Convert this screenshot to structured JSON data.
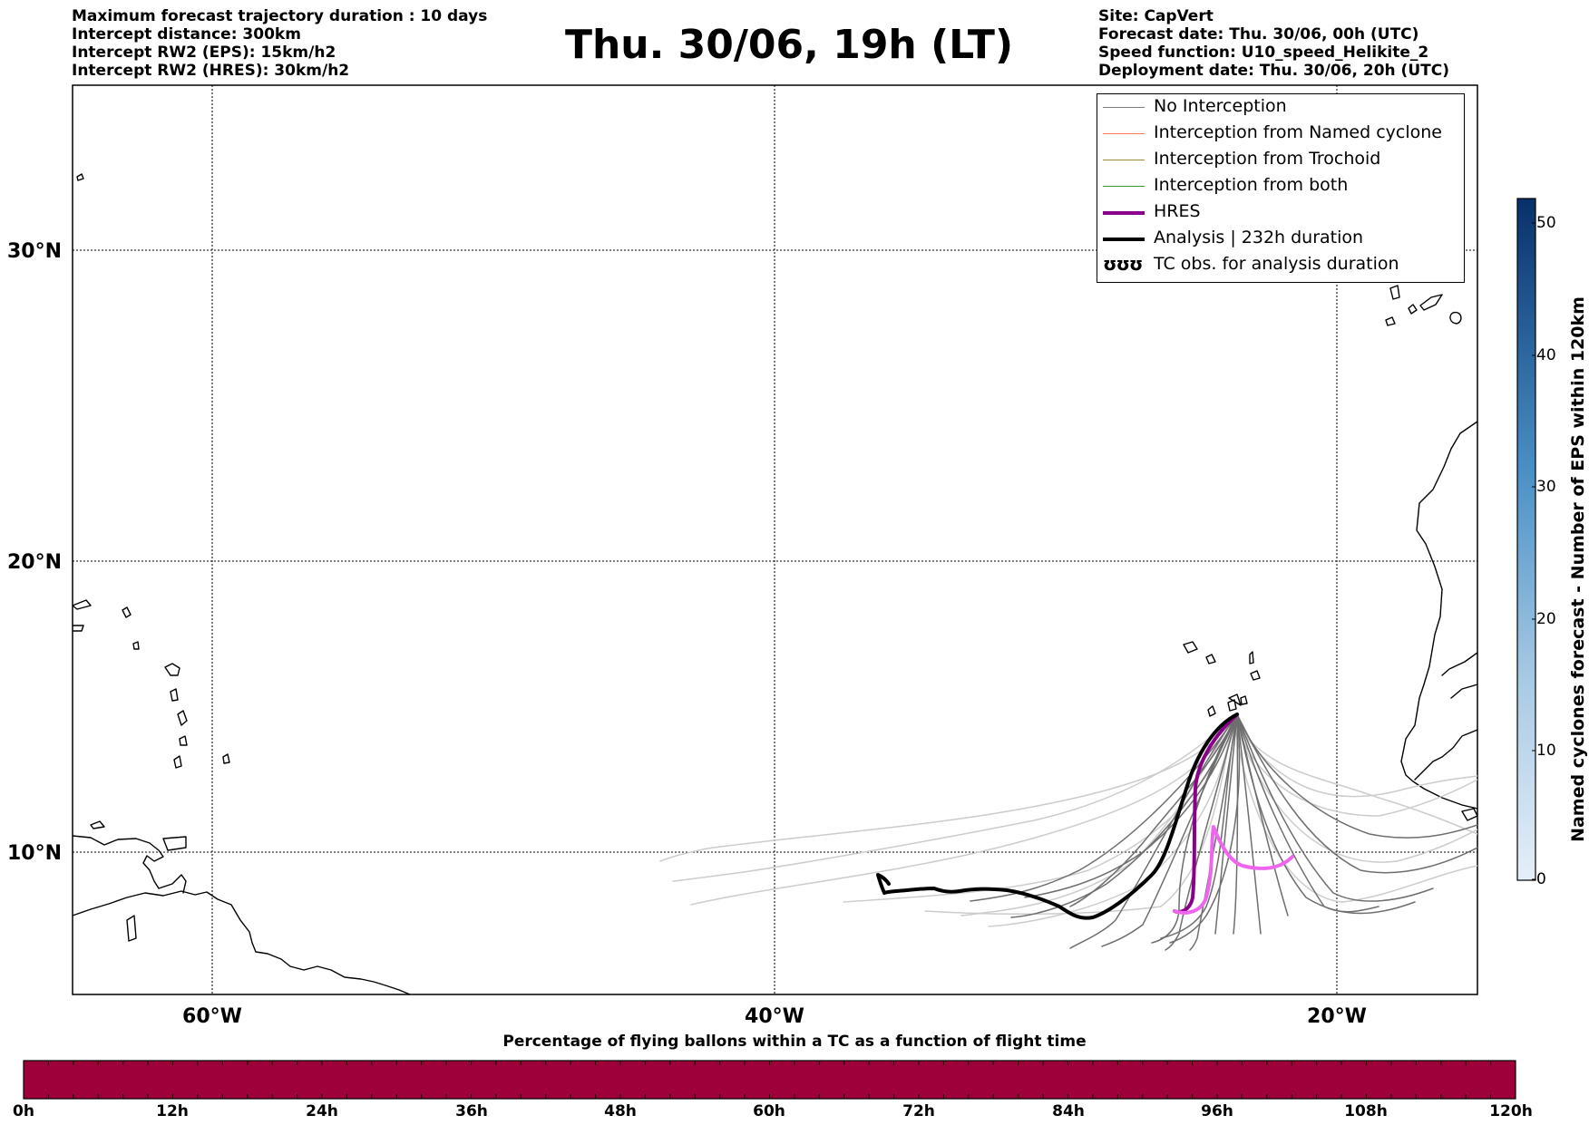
{
  "header": {
    "title": "Thu. 30/06, 19h (LT)",
    "left_lines": [
      "Maximum forecast trajectory duration : 10 days",
      "Intercept distance: 300km",
      "Intercept RW2 (EPS):  15km/h2",
      "Intercept RW2 (HRES): 30km/h2"
    ],
    "right_lines": [
      "Site: CapVert",
      "Forecast date: Thu. 30/06, 00h (UTC)",
      "Speed function: U10_speed_Helikite_2",
      "Deployment date: Thu. 30/06, 20h (UTC)"
    ]
  },
  "map": {
    "lat_labels": [
      "30°N",
      "20°N",
      "10°N"
    ],
    "lon_labels": [
      "60°W",
      "40°W",
      "20°W"
    ]
  },
  "legend": {
    "items": [
      {
        "label": "No Interception",
        "color": "#808080",
        "width": 1.5
      },
      {
        "label": "Interception from Named cyclone",
        "color": "#ff7f50",
        "width": 1.5
      },
      {
        "label": "Interception from Trochoid",
        "color": "#9a8a3a",
        "width": 1.5
      },
      {
        "label": "Interception from both",
        "color": "#3a9a3a",
        "width": 1.5
      },
      {
        "label": "HRES",
        "color": "#8b008b",
        "width": 4
      },
      {
        "label": "Analysis | 232h duration",
        "color": "#000000",
        "width": 4
      },
      {
        "label": "TC obs. for analysis duration",
        "color": "#000000",
        "width": 0,
        "symbol": "ʊʊʊ"
      }
    ]
  },
  "colorbar_vertical": {
    "label": "Named cyclones forecast - Number of EPS within 120km",
    "ticks": [
      "50",
      "40",
      "30",
      "20",
      "10",
      "0"
    ],
    "colors": [
      "#e5eff9",
      "#08306b"
    ]
  },
  "colorbar_horizontal": {
    "title": "Percentage of flying ballons within a TC as a function of flight time",
    "ticks": [
      "0h",
      "12h",
      "24h",
      "36h",
      "48h",
      "60h",
      "72h",
      "84h",
      "96h",
      "108h",
      "120h"
    ],
    "fill_color": "#9e003a"
  }
}
